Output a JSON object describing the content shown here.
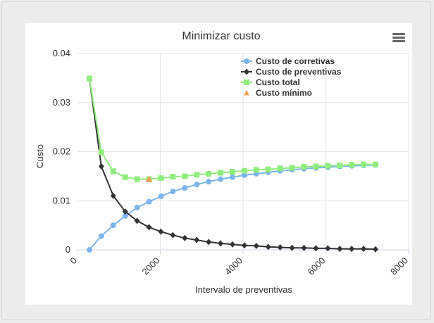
{
  "chart_data": {
    "type": "line",
    "title": "Minimizar custo",
    "xlabel": "Intervalo de preventivas",
    "ylabel": "Custo",
    "xlim": [
      0,
      8000
    ],
    "ylim": [
      0,
      0.04
    ],
    "x_ticks": [
      "0",
      "2000",
      "4000",
      "6000",
      "8000"
    ],
    "y_ticks": [
      "0",
      "0.01",
      "0.02",
      "0.03",
      "0.04"
    ],
    "grid": true,
    "legend_position": "top-right",
    "series": [
      {
        "name": "Custo de corretivas",
        "color": "#7cb5ec",
        "marker": "circle",
        "x": [
          288,
          576,
          864,
          1152,
          1440,
          1728,
          2016,
          2304,
          2592,
          2880,
          3168,
          3456,
          3744,
          4032,
          4320,
          4608,
          4896,
          5184,
          5472,
          5760,
          6048,
          6336,
          6624,
          6912,
          7200
        ],
        "y": [
          0.0,
          0.0028,
          0.005,
          0.0069,
          0.0086,
          0.0098,
          0.0109,
          0.0119,
          0.0126,
          0.0133,
          0.0139,
          0.0144,
          0.0148,
          0.0152,
          0.0155,
          0.0158,
          0.0161,
          0.0163,
          0.0165,
          0.0167,
          0.0168,
          0.017,
          0.0171,
          0.0172,
          0.0173
        ]
      },
      {
        "name": "Custo de preventivas",
        "color": "#333333",
        "marker": "diamond",
        "x": [
          288,
          576,
          864,
          1152,
          1440,
          1728,
          2016,
          2304,
          2592,
          2880,
          3168,
          3456,
          3744,
          4032,
          4320,
          4608,
          4896,
          5184,
          5472,
          5760,
          6048,
          6336,
          6624,
          6912,
          7200
        ],
        "y": [
          0.0349,
          0.017,
          0.011,
          0.0078,
          0.0059,
          0.0046,
          0.0037,
          0.003,
          0.0024,
          0.002,
          0.0016,
          0.0013,
          0.0011,
          0.0009,
          0.0008,
          0.0006,
          0.0005,
          0.0004,
          0.0004,
          0.0003,
          0.0003,
          0.0002,
          0.0002,
          0.0002,
          0.0001
        ]
      },
      {
        "name": "Custo total",
        "color": "#90ed7d",
        "marker": "square",
        "x": [
          288,
          576,
          864,
          1152,
          1440,
          1728,
          2016,
          2304,
          2592,
          2880,
          3168,
          3456,
          3744,
          4032,
          4320,
          4608,
          4896,
          5184,
          5472,
          5760,
          6048,
          6336,
          6624,
          6912,
          7200
        ],
        "y": [
          0.0349,
          0.0199,
          0.016,
          0.0148,
          0.0144,
          0.0144,
          0.0146,
          0.0149,
          0.015,
          0.0153,
          0.0155,
          0.0157,
          0.0159,
          0.0161,
          0.0163,
          0.0164,
          0.0166,
          0.0167,
          0.0169,
          0.017,
          0.0171,
          0.0172,
          0.0173,
          0.0174,
          0.0174
        ]
      },
      {
        "name": "Custo mínimo",
        "color": "#f7a35c",
        "marker": "triangle",
        "x": [
          1728
        ],
        "y": [
          0.0144
        ]
      }
    ]
  }
}
